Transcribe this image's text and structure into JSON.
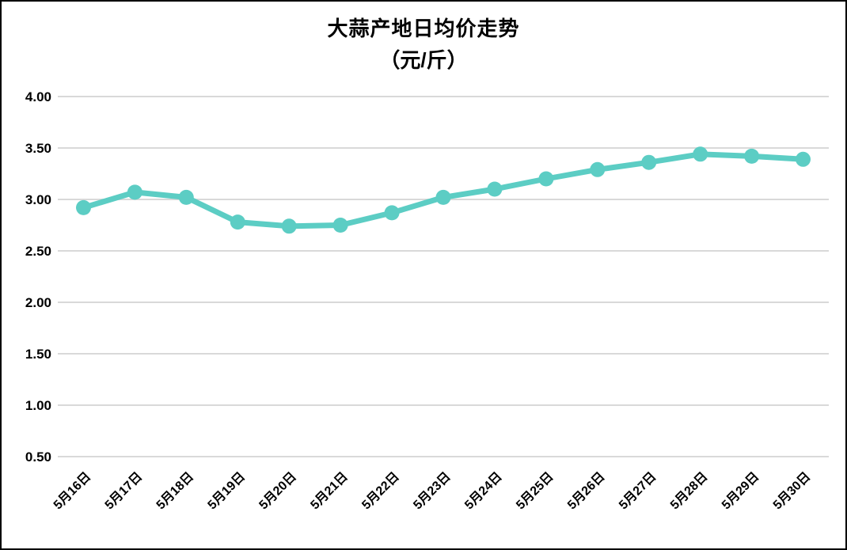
{
  "page": {
    "background_color": "#FFFFFF",
    "border_color": "#000000"
  },
  "chart_data": {
    "type": "line",
    "title": "大蒜产地日均价走势",
    "subtitle": "（元/斤）",
    "categories": [
      "5月16日",
      "5月17日",
      "5月18日",
      "5月19日",
      "5月20日",
      "5月21日",
      "5月22日",
      "5月23日",
      "5月24日",
      "5月25日",
      "5月26日",
      "5月27日",
      "5月28日",
      "5月29日",
      "5月30日"
    ],
    "values": [
      2.92,
      3.07,
      3.02,
      2.78,
      2.74,
      2.75,
      2.87,
      3.02,
      3.1,
      3.2,
      3.29,
      3.36,
      3.44,
      3.42,
      3.39
    ],
    "xlabel": "",
    "ylabel": "",
    "ylim": [
      0.5,
      4.0
    ],
    "y_ticks": [
      "4.00",
      "3.50",
      "3.00",
      "2.50",
      "2.00",
      "1.50",
      "1.00",
      "0.50"
    ],
    "grid": "horizontal",
    "legend": "none",
    "x_label_rotation_deg": -45,
    "line_color": "#5CCDC4",
    "marker_color": "#5CCDC4",
    "gridline_color": "#D9D9D9",
    "text_color": "#000000"
  }
}
